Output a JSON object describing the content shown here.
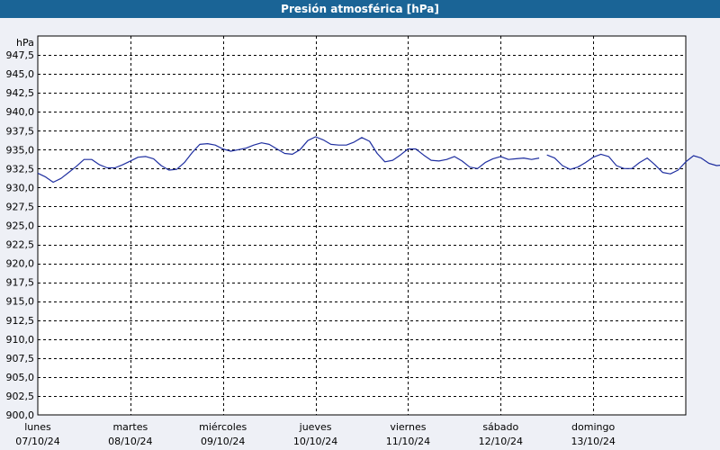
{
  "title": "Presión atmosférica [hPa]",
  "chart_data": {
    "type": "line",
    "unit_label": "hPa",
    "ylim": [
      900.0,
      950.0
    ],
    "y_ticks": [
      "900,0",
      "902,5",
      "905,0",
      "907,5",
      "910,0",
      "912,5",
      "915,0",
      "917,5",
      "920,0",
      "922,5",
      "925,0",
      "927,5",
      "930,0",
      "932,5",
      "935,0",
      "937,5",
      "940,0",
      "942,5",
      "945,0",
      "947,5"
    ],
    "y_tick_values": [
      900.0,
      902.5,
      905.0,
      907.5,
      910.0,
      912.5,
      915.0,
      917.5,
      920.0,
      922.5,
      925.0,
      927.5,
      930.0,
      932.5,
      935.0,
      937.5,
      940.0,
      942.5,
      945.0,
      947.5
    ],
    "x_range": [
      "2024-10-07",
      "2024-10-14"
    ],
    "days": [
      {
        "day": "lunes",
        "date": "07/10/24"
      },
      {
        "day": "martes",
        "date": "08/10/24"
      },
      {
        "day": "miércoles",
        "date": "09/10/24"
      },
      {
        "day": "jueves",
        "date": "10/10/24"
      },
      {
        "day": "viernes",
        "date": "11/10/24"
      },
      {
        "day": "sábado",
        "date": "12/10/24"
      },
      {
        "day": "domingo",
        "date": "13/10/24"
      }
    ],
    "grid": true,
    "line_color": "#1f2fa0",
    "series": [
      {
        "points": [
          [
            "2024-10-07 00:00",
            931.9
          ],
          [
            "2024-10-07 02:00",
            931.4
          ],
          [
            "2024-10-07 04:00",
            930.7
          ],
          [
            "2024-10-07 06:00",
            931.2
          ],
          [
            "2024-10-07 08:00",
            932.0
          ],
          [
            "2024-10-07 10:00",
            932.8
          ],
          [
            "2024-10-07 12:00",
            933.7
          ],
          [
            "2024-10-07 14:00",
            933.7
          ],
          [
            "2024-10-07 16:00",
            933.0
          ],
          [
            "2024-10-07 18:00",
            932.6
          ],
          [
            "2024-10-07 20:00",
            932.6
          ],
          [
            "2024-10-07 22:00",
            933.0
          ],
          [
            "2024-10-08 00:00",
            933.5
          ],
          [
            "2024-10-08 02:00",
            934.0
          ],
          [
            "2024-10-08 04:00",
            934.1
          ],
          [
            "2024-10-08 06:00",
            933.8
          ],
          [
            "2024-10-08 08:00",
            932.9
          ],
          [
            "2024-10-08 10:00",
            932.3
          ],
          [
            "2024-10-08 12:00",
            932.4
          ],
          [
            "2024-10-08 14:00",
            933.3
          ],
          [
            "2024-10-08 16:00",
            934.6
          ],
          [
            "2024-10-08 18:00",
            935.7
          ],
          [
            "2024-10-08 20:00",
            935.8
          ],
          [
            "2024-10-08 22:00",
            935.6
          ],
          [
            "2024-10-09 00:00",
            935.1
          ],
          [
            "2024-10-09 02:00",
            934.8
          ],
          [
            "2024-10-09 04:00",
            935.0
          ],
          [
            "2024-10-09 06:00",
            935.2
          ],
          [
            "2024-10-09 08:00",
            935.6
          ],
          [
            "2024-10-09 10:00",
            935.9
          ],
          [
            "2024-10-09 12:00",
            935.7
          ],
          [
            "2024-10-09 14:00",
            935.1
          ],
          [
            "2024-10-09 16:00",
            934.5
          ],
          [
            "2024-10-09 18:00",
            934.4
          ],
          [
            "2024-10-09 20:00",
            935.0
          ],
          [
            "2024-10-09 22:00",
            936.2
          ],
          [
            "2024-10-10 00:00",
            936.7
          ],
          [
            "2024-10-10 02:00",
            936.3
          ],
          [
            "2024-10-10 04:00",
            935.7
          ],
          [
            "2024-10-10 06:00",
            935.6
          ],
          [
            "2024-10-10 08:00",
            935.6
          ],
          [
            "2024-10-10 10:00",
            936.0
          ],
          [
            "2024-10-10 12:00",
            936.6
          ],
          [
            "2024-10-10 14:00",
            936.1
          ],
          [
            "2024-10-10 16:00",
            934.5
          ],
          [
            "2024-10-10 18:00",
            933.4
          ],
          [
            "2024-10-10 20:00",
            933.6
          ],
          [
            "2024-10-10 22:00",
            934.3
          ],
          [
            "2024-10-11 00:00",
            935.1
          ],
          [
            "2024-10-11 02:00",
            935.1
          ],
          [
            "2024-10-11 04:00",
            934.3
          ],
          [
            "2024-10-11 06:00",
            933.6
          ],
          [
            "2024-10-11 08:00",
            933.5
          ],
          [
            "2024-10-11 10:00",
            933.7
          ],
          [
            "2024-10-11 12:00",
            934.1
          ],
          [
            "2024-10-11 14:00",
            933.5
          ],
          [
            "2024-10-11 16:00",
            932.7
          ],
          [
            "2024-10-11 18:00",
            932.5
          ],
          [
            "2024-10-11 20:00",
            933.3
          ],
          [
            "2024-10-11 22:00",
            933.8
          ],
          [
            "2024-10-12 00:00",
            934.1
          ],
          [
            "2024-10-12 02:00",
            933.7
          ],
          [
            "2024-10-12 04:00",
            933.8
          ],
          [
            "2024-10-12 06:00",
            933.9
          ],
          [
            "2024-10-12 08:00",
            933.7
          ],
          [
            "2024-10-12 10:00",
            933.9
          ],
          null,
          [
            "2024-10-12 12:00",
            934.3
          ],
          [
            "2024-10-12 14:00",
            933.9
          ],
          [
            "2024-10-12 16:00",
            932.9
          ],
          [
            "2024-10-12 18:00",
            932.4
          ],
          [
            "2024-10-12 20:00",
            932.7
          ],
          [
            "2024-10-12 22:00",
            933.3
          ],
          [
            "2024-10-13 00:00",
            934.0
          ],
          [
            "2024-10-13 02:00",
            934.4
          ],
          [
            "2024-10-13 04:00",
            934.1
          ],
          [
            "2024-10-13 06:00",
            932.9
          ],
          [
            "2024-10-13 08:00",
            932.5
          ],
          [
            "2024-10-13 10:00",
            932.5
          ],
          [
            "2024-10-13 12:00",
            933.3
          ],
          [
            "2024-10-13 14:00",
            933.9
          ],
          [
            "2024-10-13 16:00",
            933.0
          ],
          [
            "2024-10-13 18:00",
            932.0
          ],
          [
            "2024-10-13 20:00",
            931.8
          ],
          [
            "2024-10-13 22:00",
            932.3
          ],
          [
            "2024-10-14 00:00",
            933.4
          ],
          [
            "2024-10-14 02:00",
            934.2
          ],
          [
            "2024-10-14 04:00",
            933.9
          ],
          [
            "2024-10-14 06:00",
            933.2
          ],
          [
            "2024-10-14 08:00",
            932.9
          ],
          [
            "2024-10-14 10:00",
            933.0
          ],
          [
            "2024-10-14 12:00",
            932.9
          ],
          [
            "2024-10-14 14:00",
            933.2
          ],
          [
            "2024-10-14 16:00",
            933.8
          ],
          [
            "2024-10-14 18:00",
            933.4
          ]
        ]
      }
    ]
  }
}
